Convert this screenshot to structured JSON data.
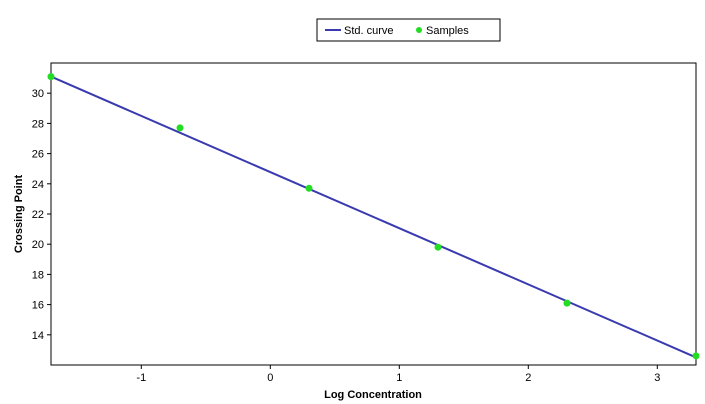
{
  "chart_data": {
    "type": "scatter",
    "title": "",
    "xlabel": "Log Concentration",
    "ylabel": "Crossing Point",
    "xlim": [
      -1.7,
      3.3
    ],
    "ylim": [
      12,
      32
    ],
    "x_ticks": [
      "-1",
      "0",
      "1",
      "2",
      "3"
    ],
    "y_ticks": [
      "14",
      "16",
      "18",
      "20",
      "22",
      "24",
      "26",
      "28",
      "30"
    ],
    "legend_position": "top-center",
    "grid": false,
    "series": [
      {
        "name": "Std. curve",
        "kind": "line",
        "color": "#3a3ab0",
        "x": [
          -1.7,
          3.3
        ],
        "y": [
          31.1,
          12.5
        ]
      },
      {
        "name": "Samples",
        "kind": "scatter",
        "color": "#22dd22",
        "x": [
          -1.7,
          -0.7,
          0.3,
          1.3,
          2.3,
          3.3
        ],
        "y": [
          31.1,
          27.7,
          23.7,
          19.8,
          16.1,
          12.6
        ]
      }
    ]
  }
}
